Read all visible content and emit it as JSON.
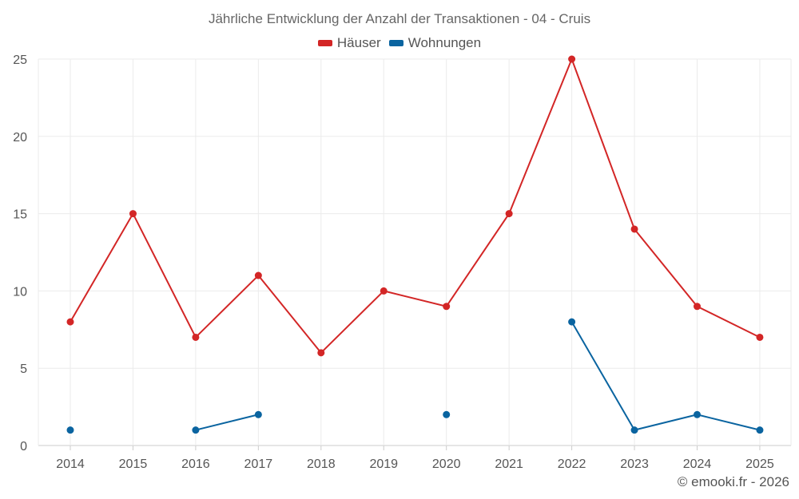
{
  "chart_data": {
    "type": "line",
    "title": "Jährliche Entwicklung der Anzahl der Transaktionen - 04 - Cruis",
    "categories": [
      "2014",
      "2015",
      "2016",
      "2017",
      "2018",
      "2019",
      "2020",
      "2021",
      "2022",
      "2023",
      "2024",
      "2025"
    ],
    "series": [
      {
        "name": "Häuser",
        "color": "#d32626",
        "values": [
          8,
          15,
          7,
          11,
          6,
          10,
          9,
          15,
          25,
          14,
          9,
          7
        ]
      },
      {
        "name": "Wohnungen",
        "color": "#0a64a0",
        "values": [
          1,
          null,
          1,
          2,
          null,
          null,
          2,
          null,
          8,
          1,
          2,
          1
        ]
      }
    ],
    "ylim": [
      0,
      25
    ],
    "yticks": [
      0,
      5,
      10,
      15,
      20,
      25
    ],
    "xlabel": "",
    "ylabel": "",
    "grid": true,
    "legend": "top-center"
  },
  "credit": "© emooki.fr - 2026"
}
